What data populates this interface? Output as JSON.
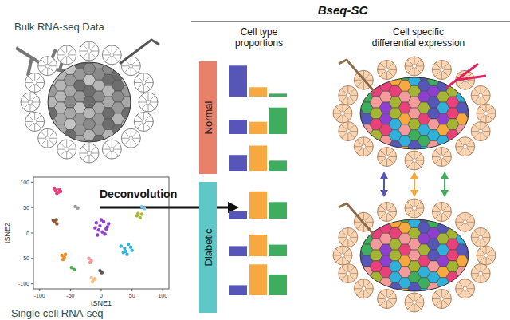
{
  "title": "Bseq-SC",
  "inputs": {
    "bulk": "Bulk RNA-seq Data",
    "single_cell": "Single cell RNA-seq"
  },
  "arrow_label": "Deconvolution",
  "columns": [
    [
      "Cell type",
      "proportions"
    ],
    [
      "Cell specific",
      "differential expression"
    ]
  ],
  "groups": [
    {
      "label": "Normal",
      "color": "#e8806a"
    },
    {
      "label": "Diabetic",
      "color": "#5ec8c8"
    }
  ],
  "chart_data": [
    {
      "type": "bar",
      "categories": [
        null,
        null,
        null
      ],
      "values": [
        43,
        13,
        4
      ],
      "colors": [
        "#5656b8",
        "#f7a83e",
        "#3ead5e"
      ],
      "ylim": [
        0,
        50
      ],
      "tick_labels": false
    },
    {
      "type": "bar",
      "categories": [
        null,
        null,
        null
      ],
      "values": [
        20,
        17,
        37
      ],
      "colors": [
        "#5656b8",
        "#f7a83e",
        "#3ead5e"
      ],
      "ylim": [
        0,
        50
      ],
      "tick_labels": false
    },
    {
      "type": "bar",
      "categories": [
        null,
        null,
        null
      ],
      "values": [
        22,
        35,
        14
      ],
      "colors": [
        "#5656b8",
        "#f7a83e",
        "#3ead5e"
      ],
      "ylim": [
        0,
        50
      ],
      "tick_labels": false
    },
    {
      "type": "bar",
      "categories": [
        null,
        null,
        null
      ],
      "values": [
        10,
        38,
        23
      ],
      "colors": [
        "#5656b8",
        "#f7a83e",
        "#3ead5e"
      ],
      "ylim": [
        0,
        50
      ],
      "tick_labels": false
    },
    {
      "type": "bar",
      "categories": [
        null,
        null,
        null
      ],
      "values": [
        14,
        30,
        16
      ],
      "colors": [
        "#5656b8",
        "#f7a83e",
        "#3ead5e"
      ],
      "ylim": [
        0,
        50
      ],
      "tick_labels": false
    },
    {
      "type": "bar",
      "categories": [
        null,
        null,
        null
      ],
      "values": [
        14,
        43,
        29
      ],
      "colors": [
        "#5656b8",
        "#f7a83e",
        "#3ead5e"
      ],
      "ylim": [
        0,
        50
      ],
      "tick_labels": false
    },
    {
      "type": "scatter",
      "x_label": "tSNE1",
      "y_label": "tSNE2",
      "xlim": [
        -110,
        110
      ],
      "ylim": [
        -110,
        110
      ],
      "xticks": [
        -100,
        -50,
        0,
        50,
        100
      ],
      "yticks": [
        -100,
        -50,
        0,
        50,
        100
      ],
      "series": [
        {
          "color": "#e8417a",
          "x": [
            -74,
            -70,
            -68,
            -72,
            -66,
            -76
          ],
          "values": [
            84,
            80,
            86,
            78,
            82,
            88
          ]
        },
        {
          "color": "#8c5a3a",
          "x": [
            -76,
            -72,
            -78,
            -73
          ],
          "values": [
            22,
            18,
            25,
            26
          ]
        },
        {
          "color": "#9a9a9a",
          "x": [
            -42,
            -38
          ],
          "values": [
            52,
            49
          ]
        },
        {
          "color": "#8e3fd0",
          "x": [
            -8,
            -2,
            4,
            10,
            -4,
            2,
            8,
            -10,
            0,
            6,
            12,
            -6
          ],
          "values": [
            20,
            14,
            22,
            12,
            6,
            2,
            8,
            10,
            26,
            -2,
            18,
            -4
          ]
        },
        {
          "color": "#a5b432",
          "x": [
            58,
            63,
            66,
            60
          ],
          "values": [
            34,
            30,
            37,
            38
          ]
        },
        {
          "color": "#7cc8ee",
          "x": [
            66,
            70
          ],
          "values": [
            52,
            48
          ]
        },
        {
          "color": "#2fb1dc",
          "x": [
            32,
            38,
            44,
            50,
            36,
            42,
            48,
            40
          ],
          "values": [
            -26,
            -30,
            -22,
            -34,
            -38,
            -42,
            -28,
            -36
          ]
        },
        {
          "color": "#f08a24",
          "x": [
            -64,
            -60,
            -58,
            -62
          ],
          "values": [
            -44,
            -48,
            -42,
            -52
          ]
        },
        {
          "color": "#f39a9a",
          "x": [
            -20,
            -16,
            -18
          ],
          "values": [
            -50,
            -54,
            -58
          ]
        },
        {
          "color": "#4daf4a",
          "x": [
            -48,
            -44
          ],
          "values": [
            -68,
            -72
          ]
        },
        {
          "color": "#f6c28c",
          "x": [
            -16,
            -12,
            -14,
            -10
          ],
          "values": [
            -88,
            -92,
            -96,
            -90
          ]
        },
        {
          "color": "#555555",
          "x": [
            -2,
            1
          ],
          "values": [
            -74,
            -78
          ]
        }
      ]
    }
  ]
}
